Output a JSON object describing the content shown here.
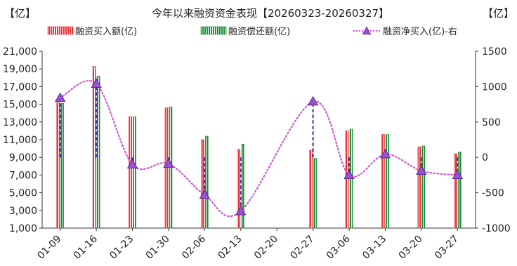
{
  "chart_data": {
    "type": "bar+line",
    "title": "今年以来融资资金表现【20260323-20260327】",
    "left_unit": "【亿】",
    "right_unit": "【亿】",
    "categories": [
      "01-09",
      "01-16",
      "01-23",
      "01-30",
      "02-06",
      "02-13",
      "02-20",
      "02-27",
      "03-06",
      "03-13",
      "03-20",
      "03-27"
    ],
    "series": [
      {
        "name": "融资买入额(亿)",
        "kind": "bar",
        "axis": "left",
        "color": "#e8343a",
        "values": [
          15200,
          19300,
          13600,
          14600,
          11000,
          9900,
          null,
          9800,
          12000,
          11600,
          10200,
          9400
        ]
      },
      {
        "name": "融资偿还额(亿)",
        "kind": "bar",
        "axis": "left",
        "color": "#1f8f3a",
        "values": [
          15100,
          18200,
          13600,
          14700,
          11400,
          10500,
          null,
          8900,
          12200,
          11600,
          10300,
          9600
        ]
      },
      {
        "name": "融资净买入(亿)-右",
        "kind": "line",
        "axis": "right",
        "color": "#d34bd6",
        "marker_color": "#9b4fd3",
        "values": [
          840,
          1040,
          -100,
          -90,
          -530,
          -760,
          null,
          790,
          -250,
          45,
          -190,
          -250
        ]
      }
    ],
    "left_axis": {
      "min": 1000,
      "max": 21000,
      "ticks": [
        "1,000",
        "3,000",
        "5,000",
        "7,000",
        "9,000",
        "11,000",
        "13,000",
        "15,000",
        "17,000",
        "19,000",
        "21,000"
      ]
    },
    "right_axis": {
      "min": -1000,
      "max": 1500,
      "ticks": [
        "-1000",
        "-500",
        "0",
        "500",
        "1000",
        "1500"
      ]
    },
    "grid": false,
    "legend_position": "top"
  }
}
